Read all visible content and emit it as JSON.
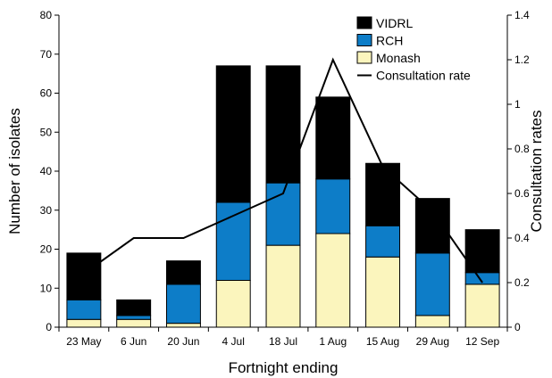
{
  "chart_data": {
    "type": "bar",
    "stacked": true,
    "categories": [
      "23 May",
      "6 Jun",
      "20 Jun",
      "4 Jul",
      "18 Jul",
      "1 Aug",
      "15 Aug",
      "29 Aug",
      "12 Sep"
    ],
    "series": [
      {
        "name": "Monash",
        "color": "#fbf5bd",
        "values": [
          2,
          2,
          1,
          12,
          21,
          24,
          18,
          3,
          11
        ]
      },
      {
        "name": "RCH",
        "color": "#0d7dc8",
        "values": [
          5,
          1,
          10,
          20,
          16,
          14,
          8,
          16,
          3
        ]
      },
      {
        "name": "VIDRL",
        "color": "#000000",
        "values": [
          12,
          4,
          6,
          35,
          30,
          21,
          16,
          14,
          11
        ]
      }
    ],
    "line_series": {
      "name": "Consultation rate",
      "color": "#000000",
      "axis": "right",
      "values": [
        0.24,
        0.4,
        0.4,
        0.5,
        0.6,
        1.2,
        0.72,
        0.52,
        0.2
      ]
    },
    "legend_order": [
      "VIDRL",
      "RCH",
      "Monash",
      "Consultation rate"
    ],
    "legend_position": "top-right",
    "xlabel": "Fortnight ending",
    "ylabel": "Number of isolates",
    "y2label": "Consultation rates",
    "ylim": [
      0,
      80
    ],
    "y_ticks": [
      0,
      10,
      20,
      30,
      40,
      50,
      60,
      70,
      80
    ],
    "y2lim": [
      0,
      1.4
    ],
    "y2_ticks": [
      "0",
      "0.2",
      "0.4",
      "0.6",
      "0.8",
      "1",
      "1.2",
      "1.4"
    ],
    "grid": false
  }
}
